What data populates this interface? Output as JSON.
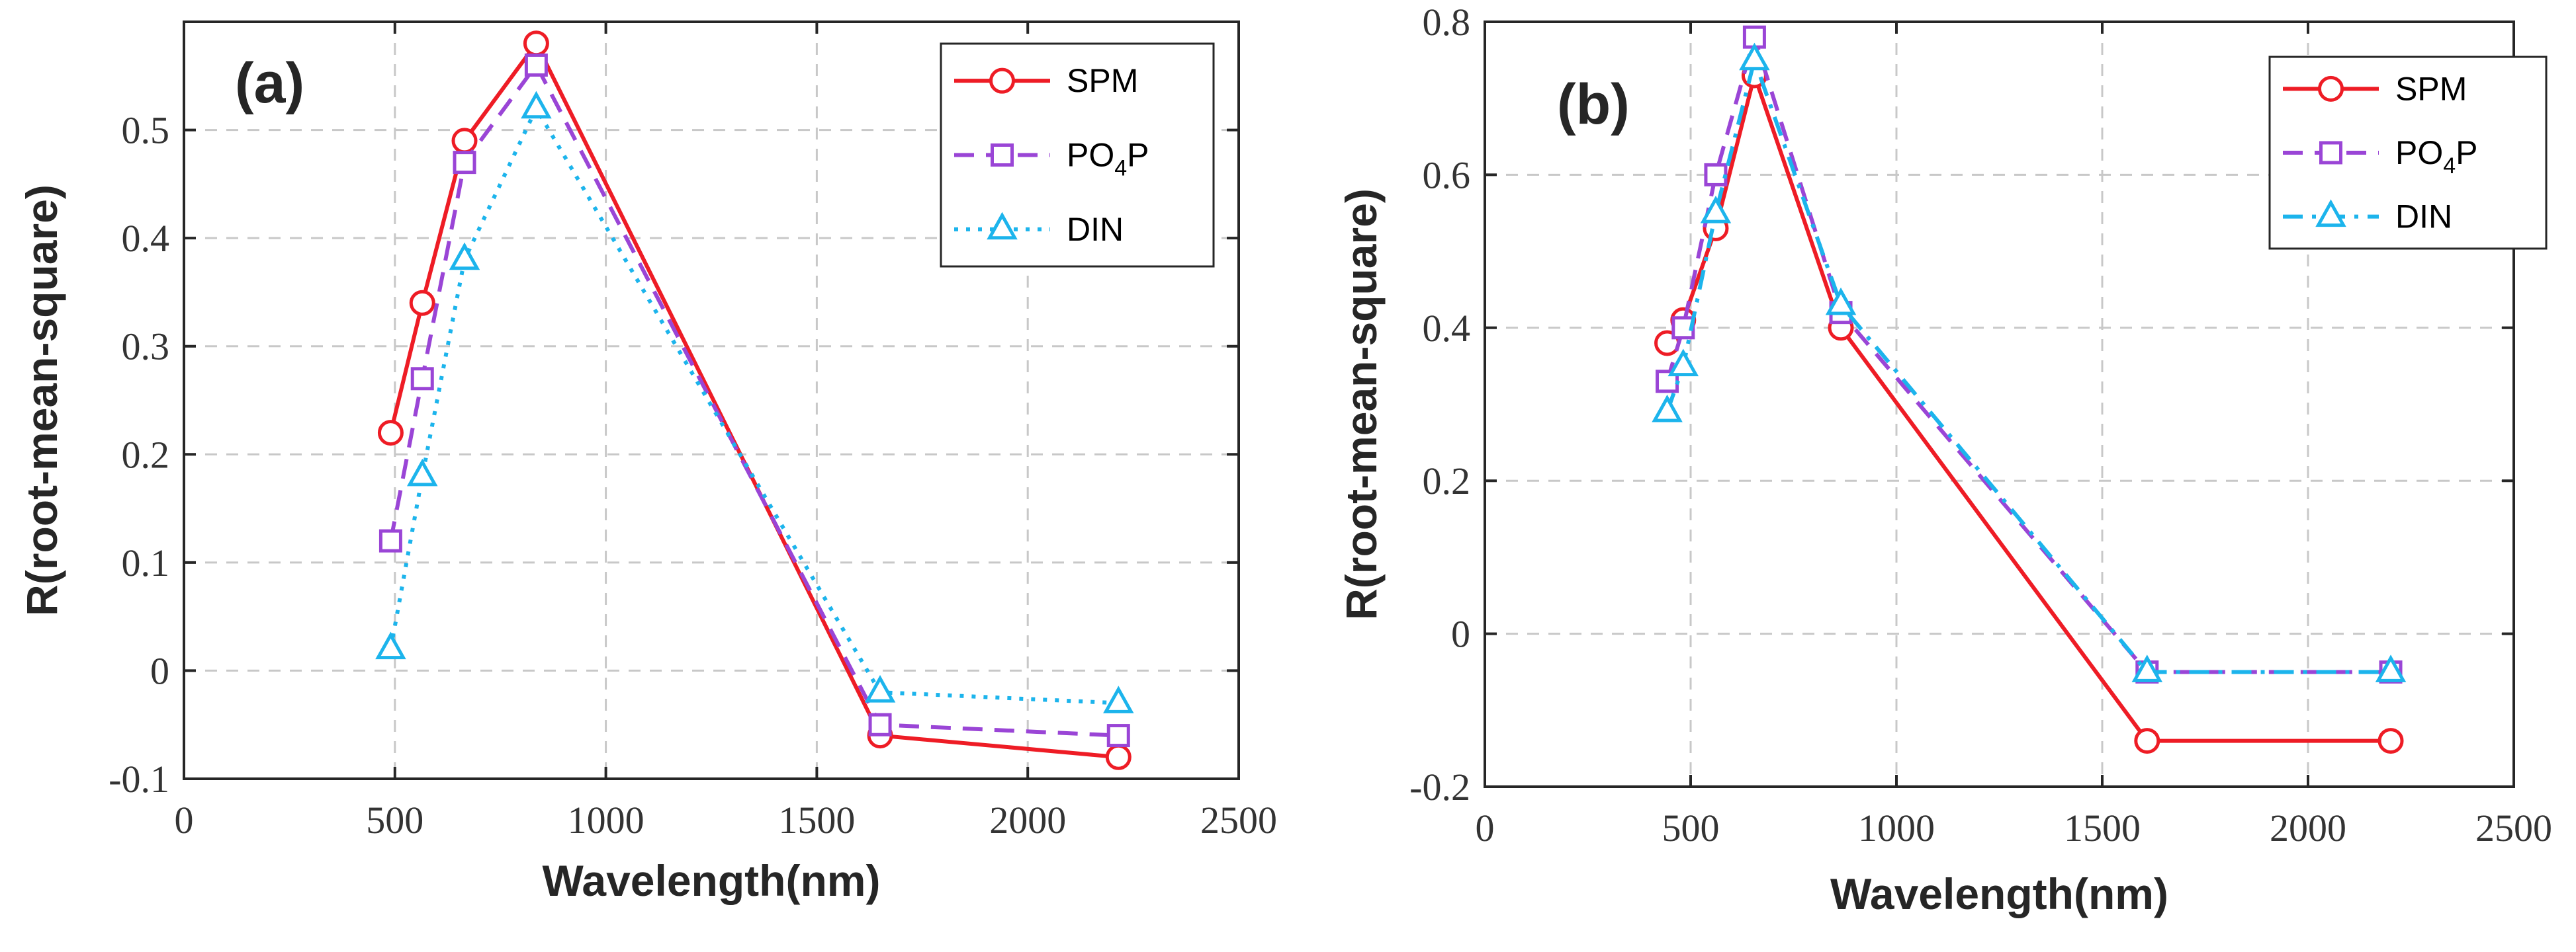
{
  "chart_data": [
    {
      "type": "line",
      "panel_label": "(a)",
      "xlabel": "Wavelength(nm)",
      "ylabel": "R(root-mean-square)",
      "xlim": [
        0,
        2500
      ],
      "ylim": [
        -0.1,
        0.6
      ],
      "xticks": [
        0,
        500,
        1000,
        1500,
        2000,
        2500
      ],
      "yticks": [
        -0.1,
        0,
        0.1,
        0.2,
        0.3,
        0.4,
        0.5
      ],
      "ytick_labels": [
        "-0.1",
        "0",
        "0.1",
        "0.2",
        "0.3",
        "0.4",
        "0.5"
      ],
      "xtick_labels": [
        "0",
        "500",
        "1000",
        "1500",
        "2000",
        "2500"
      ],
      "grid": true,
      "legend_position": "top-right",
      "series": [
        {
          "name": "SPM",
          "color": "#ee1c25",
          "marker": "circle",
          "line": "solid",
          "x": [
            490,
            565,
            665,
            835,
            1650,
            2215
          ],
          "values": [
            0.22,
            0.34,
            0.49,
            0.58,
            -0.06,
            -0.08
          ]
        },
        {
          "name": "PO4P",
          "name_main": "PO",
          "name_sub": "4",
          "name_tail": "P",
          "color": "#9a45d6",
          "marker": "square",
          "line": "dashed",
          "x": [
            490,
            565,
            665,
            835,
            1650,
            2215
          ],
          "values": [
            0.12,
            0.27,
            0.47,
            0.56,
            -0.05,
            -0.06
          ]
        },
        {
          "name": "DIN",
          "color": "#1cb4ec",
          "marker": "triangle",
          "line": "dotted",
          "x": [
            490,
            565,
            665,
            835,
            1650,
            2215
          ],
          "values": [
            0.02,
            0.18,
            0.38,
            0.52,
            -0.02,
            -0.03
          ]
        }
      ]
    },
    {
      "type": "line",
      "panel_label": "(b)",
      "xlabel": "Wavelength(nm)",
      "ylabel": "R(root-mean-square)",
      "xlim": [
        0,
        2500
      ],
      "ylim": [
        -0.2,
        0.8
      ],
      "xticks": [
        0,
        500,
        1000,
        1500,
        2000,
        2500
      ],
      "yticks": [
        -0.2,
        0,
        0.2,
        0.4,
        0.6,
        0.8
      ],
      "ytick_labels": [
        "-0.2",
        "0",
        "0.2",
        "0.4",
        "0.6",
        "0.8"
      ],
      "xtick_labels": [
        "0",
        "500",
        "1000",
        "1500",
        "2000",
        "2500"
      ],
      "grid": true,
      "legend_position": "top-right",
      "series": [
        {
          "name": "SPM",
          "color": "#ee1c25",
          "marker": "circle",
          "line": "solid",
          "x": [
            443,
            482,
            561,
            655,
            865,
            1609,
            2201
          ],
          "values": [
            0.38,
            0.41,
            0.53,
            0.73,
            0.4,
            -0.14,
            -0.14
          ]
        },
        {
          "name": "PO4P",
          "name_main": "PO",
          "name_sub": "4",
          "name_tail": "P",
          "color": "#9a45d6",
          "marker": "square",
          "line": "dashed",
          "x": [
            443,
            482,
            561,
            655,
            865,
            1609,
            2201
          ],
          "values": [
            0.33,
            0.4,
            0.6,
            0.78,
            0.42,
            -0.05,
            -0.05
          ]
        },
        {
          "name": "DIN",
          "color": "#1cb4ec",
          "marker": "triangle",
          "line": "dashdot",
          "x": [
            443,
            482,
            561,
            655,
            865,
            1609,
            2201
          ],
          "values": [
            0.29,
            0.35,
            0.55,
            0.75,
            0.43,
            -0.05,
            -0.05
          ]
        }
      ]
    }
  ]
}
